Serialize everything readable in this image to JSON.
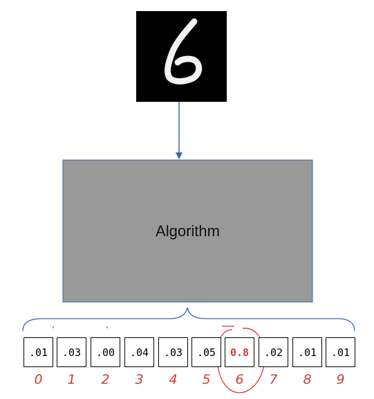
{
  "algorithm_label": "Algorithm",
  "input_image": {
    "digit": "6"
  },
  "outputs": [
    {
      "class": "0",
      "prob": ".01"
    },
    {
      "class": "1",
      "prob": ".03"
    },
    {
      "class": "2",
      "prob": ".00"
    },
    {
      "class": "3",
      "prob": ".04"
    },
    {
      "class": "4",
      "prob": ".03"
    },
    {
      "class": "5",
      "prob": ".05"
    },
    {
      "class": "6",
      "prob": "0.8",
      "highlighted": true
    },
    {
      "class": "7",
      "prob": ".02"
    },
    {
      "class": "8",
      "prob": ".01"
    },
    {
      "class": "9",
      "prob": ".01"
    }
  ],
  "colors": {
    "algorithm_fill": "#999999",
    "algorithm_border": "#41659a",
    "arrow": "#3a67a8",
    "brace": "#3a67a8",
    "highlight": "#d33a3a"
  }
}
